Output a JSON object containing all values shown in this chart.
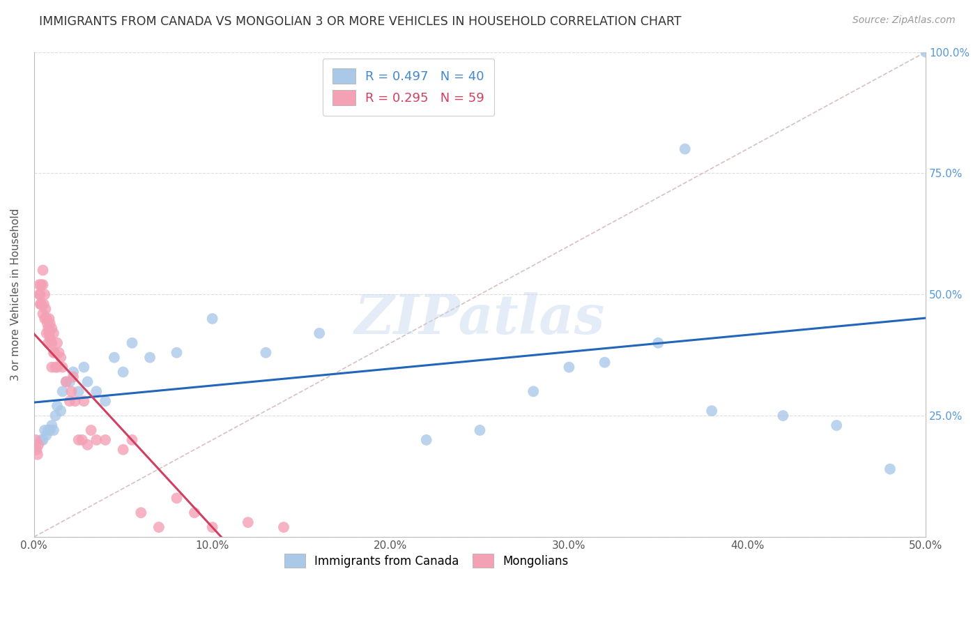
{
  "title": "IMMIGRANTS FROM CANADA VS MONGOLIAN 3 OR MORE VEHICLES IN HOUSEHOLD CORRELATION CHART",
  "source": "Source: ZipAtlas.com",
  "ylabel": "3 or more Vehicles in Household",
  "xlim": [
    0,
    50
  ],
  "ylim": [
    0,
    100
  ],
  "x_tick_vals": [
    0,
    10,
    20,
    30,
    40,
    50
  ],
  "y_tick_vals": [
    0,
    25,
    50,
    75,
    100
  ],
  "scatter_color_canada": "#aac8e8",
  "scatter_color_mongolia": "#f4a0b5",
  "line_color_canada": "#2266bb",
  "line_color_mongolia": "#d04060",
  "diag_color": "#d8c0c0",
  "background_color": "#ffffff",
  "grid_color": "#dddddd",
  "watermark": "ZIPatlas",
  "canada_x": [
    0.4,
    0.5,
    0.6,
    0.7,
    0.8,
    0.9,
    1.0,
    1.1,
    1.2,
    1.3,
    1.5,
    1.6,
    1.8,
    2.0,
    2.2,
    2.5,
    2.8,
    3.0,
    3.5,
    4.0,
    4.5,
    5.0,
    5.5,
    6.5,
    8.0,
    10.0,
    13.0,
    16.0,
    22.0,
    25.0,
    28.0,
    30.0,
    32.0,
    35.0,
    36.5,
    38.0,
    42.0,
    45.0,
    48.0,
    50.0
  ],
  "canada_y": [
    20,
    20,
    22,
    21,
    22,
    22,
    23,
    22,
    25,
    27,
    26,
    30,
    32,
    32,
    34,
    30,
    35,
    32,
    30,
    28,
    37,
    34,
    40,
    37,
    38,
    45,
    38,
    42,
    20,
    22,
    30,
    35,
    36,
    40,
    80,
    26,
    25,
    23,
    14,
    100
  ],
  "mongolia_x": [
    0.1,
    0.15,
    0.2,
    0.25,
    0.3,
    0.3,
    0.35,
    0.35,
    0.4,
    0.4,
    0.5,
    0.5,
    0.5,
    0.55,
    0.6,
    0.6,
    0.65,
    0.7,
    0.7,
    0.75,
    0.8,
    0.8,
    0.85,
    0.85,
    0.9,
    0.9,
    1.0,
    1.0,
    1.0,
    1.1,
    1.1,
    1.15,
    1.2,
    1.3,
    1.3,
    1.4,
    1.5,
    1.6,
    1.8,
    2.0,
    2.1,
    2.2,
    2.3,
    2.5,
    2.7,
    2.8,
    3.0,
    3.2,
    3.5,
    4.0,
    5.0,
    5.5,
    6.0,
    7.0,
    8.0,
    9.0,
    10.0,
    12.0,
    14.0
  ],
  "mongolia_y": [
    20,
    18,
    17,
    19,
    52,
    50,
    50,
    48,
    48,
    52,
    52,
    46,
    55,
    48,
    45,
    50,
    47,
    45,
    42,
    44,
    43,
    40,
    45,
    42,
    41,
    44,
    40,
    35,
    43,
    38,
    42,
    38,
    35,
    40,
    35,
    38,
    37,
    35,
    32,
    28,
    30,
    33,
    28,
    20,
    20,
    28,
    19,
    22,
    20,
    20,
    18,
    20,
    5,
    2,
    8,
    5,
    2,
    3,
    2
  ]
}
